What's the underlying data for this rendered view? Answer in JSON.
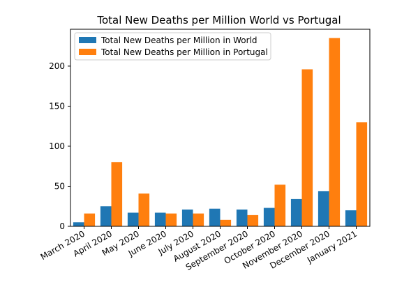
{
  "chart_data": {
    "type": "bar",
    "title": "Total New Deaths per Million World vs Portugal",
    "xlabel": "",
    "ylabel": "",
    "categories": [
      "March 2020",
      "April 2020",
      "May 2020",
      "June 2020",
      "July 2020",
      "August 2020",
      "September 2020",
      "October 2020",
      "November 2020",
      "December 2020",
      "January 2021"
    ],
    "series": [
      {
        "name": "Total New Deaths per Million in World",
        "color": "#1f77b4",
        "values": [
          5,
          25,
          17,
          17,
          21,
          22,
          21,
          23,
          34,
          44,
          20
        ]
      },
      {
        "name": "Total New Deaths per Million in Portugal",
        "color": "#ff7f0e",
        "values": [
          16,
          80,
          41,
          16,
          16,
          8,
          14,
          52,
          196,
          235,
          130
        ]
      }
    ],
    "yticks": [
      0,
      50,
      100,
      150,
      200
    ],
    "ylim": [
      0,
      246
    ],
    "grid": false,
    "legend_position": "top-left"
  }
}
